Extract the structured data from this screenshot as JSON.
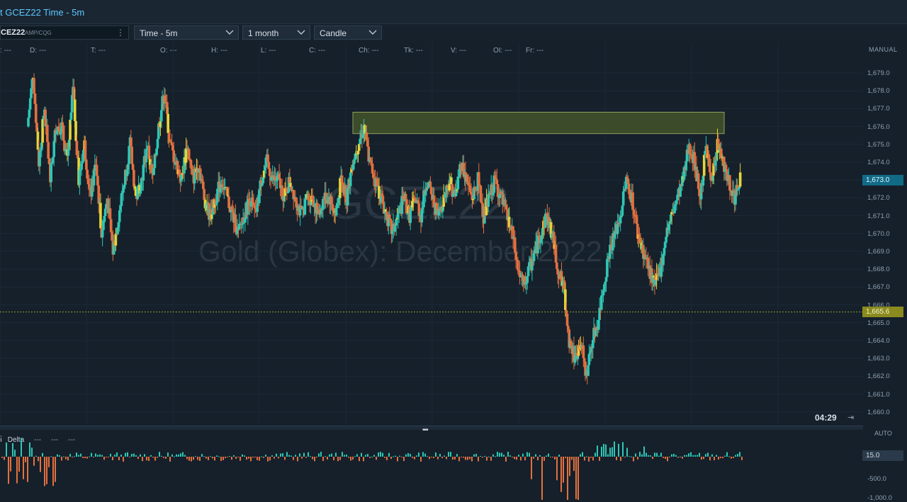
{
  "window": {
    "title": "t GCEZ22 Time - 5m"
  },
  "toolbar": {
    "symbol_code": "CEZ22",
    "symbol_source": "AMP/CQG",
    "interval": "Time - 5m",
    "range": "1 month",
    "style": "Candle"
  },
  "infoline": [
    {
      "key": ":",
      "value": "---"
    },
    {
      "key": "D:",
      "value": "---"
    },
    {
      "key": "T:",
      "value": "---"
    },
    {
      "key": "O:",
      "value": "---"
    },
    {
      "key": "H:",
      "value": "---"
    },
    {
      "key": "L:",
      "value": "---"
    },
    {
      "key": "C:",
      "value": "---"
    },
    {
      "key": "Ch:",
      "value": "---"
    },
    {
      "key": "Tk:",
      "value": "---"
    },
    {
      "key": "V:",
      "value": "---"
    },
    {
      "key": "OI:",
      "value": "---"
    },
    {
      "key": "Fr:",
      "value": "---"
    }
  ],
  "scale_mode": "MANUAL",
  "price_axis": [
    "1,679.0",
    "1,678.0",
    "1,677.0",
    "1,676.0",
    "1,675.0",
    "1,674.0",
    "1,673.0",
    "1,672.0",
    "1,671.0",
    "1,670.0",
    "1,669.0",
    "1,668.0",
    "1,667.0",
    "1,666.0",
    "1,665.0",
    "1,664.0",
    "1,663.0",
    "1,662.0",
    "1,661.0",
    "1,660.0"
  ],
  "current_price": "1,673.0",
  "line_price": "1,665.6",
  "bar_timer": "04:29",
  "timer_icon": "jump-to-end-icon",
  "watermark": {
    "symbol": "GCEZ22",
    "name": "Gold (Globex): December 2022"
  },
  "delta_panel": {
    "label": "Delta",
    "values": [
      "---",
      "---",
      "---"
    ],
    "scale_mode": "AUTO",
    "axis_value": "15.0",
    "axis_neg": "-500.0",
    "axis_neg2": "-1,000.0"
  },
  "colors": {
    "up": "#2fc7b5",
    "down": "#e3703f",
    "highlight": "#e8d43a",
    "zone": "#4a5a2a",
    "line": "#9a9a2a"
  },
  "chart_data": {
    "type": "candlestick",
    "ylim": [
      1659.5,
      1680.0
    ],
    "zone": {
      "from": 1675.6,
      "to": 1676.8
    },
    "hline": 1665.6,
    "path": [
      1676,
      1679,
      1674,
      1677,
      1673,
      1676,
      1676,
      1674,
      1678,
      1673,
      1675,
      1672,
      1674,
      1670,
      1672,
      1669,
      1671,
      1673,
      1675,
      1672,
      1673,
      1675,
      1673,
      1676,
      1678,
      1675,
      1674,
      1673,
      1675,
      1673,
      1674,
      1672,
      1671,
      1672,
      1673,
      1672,
      1671,
      1670,
      1671,
      1672,
      1671,
      1673,
      1674,
      1673,
      1673,
      1672,
      1673,
      1672,
      1671,
      1672,
      1672,
      1671,
      1672,
      1672,
      1671,
      1673,
      1672,
      1674,
      1675,
      1676,
      1674,
      1673,
      1672,
      1671,
      1670,
      1671,
      1672,
      1671,
      1672,
      1671,
      1673,
      1672,
      1671,
      1672,
      1673,
      1672,
      1674,
      1673,
      1672,
      1673,
      1671,
      1672,
      1673,
      1672,
      1671,
      1670,
      1668,
      1667,
      1668,
      1669,
      1670,
      1671,
      1670,
      1668,
      1667,
      1664,
      1663,
      1664,
      1662,
      1664,
      1665,
      1667,
      1669,
      1670,
      1671,
      1673,
      1672,
      1670,
      1669,
      1668,
      1667,
      1668,
      1670,
      1671,
      1672,
      1673,
      1675,
      1674,
      1672,
      1675,
      1673,
      1675,
      1674,
      1673,
      1672,
      1673
    ]
  }
}
